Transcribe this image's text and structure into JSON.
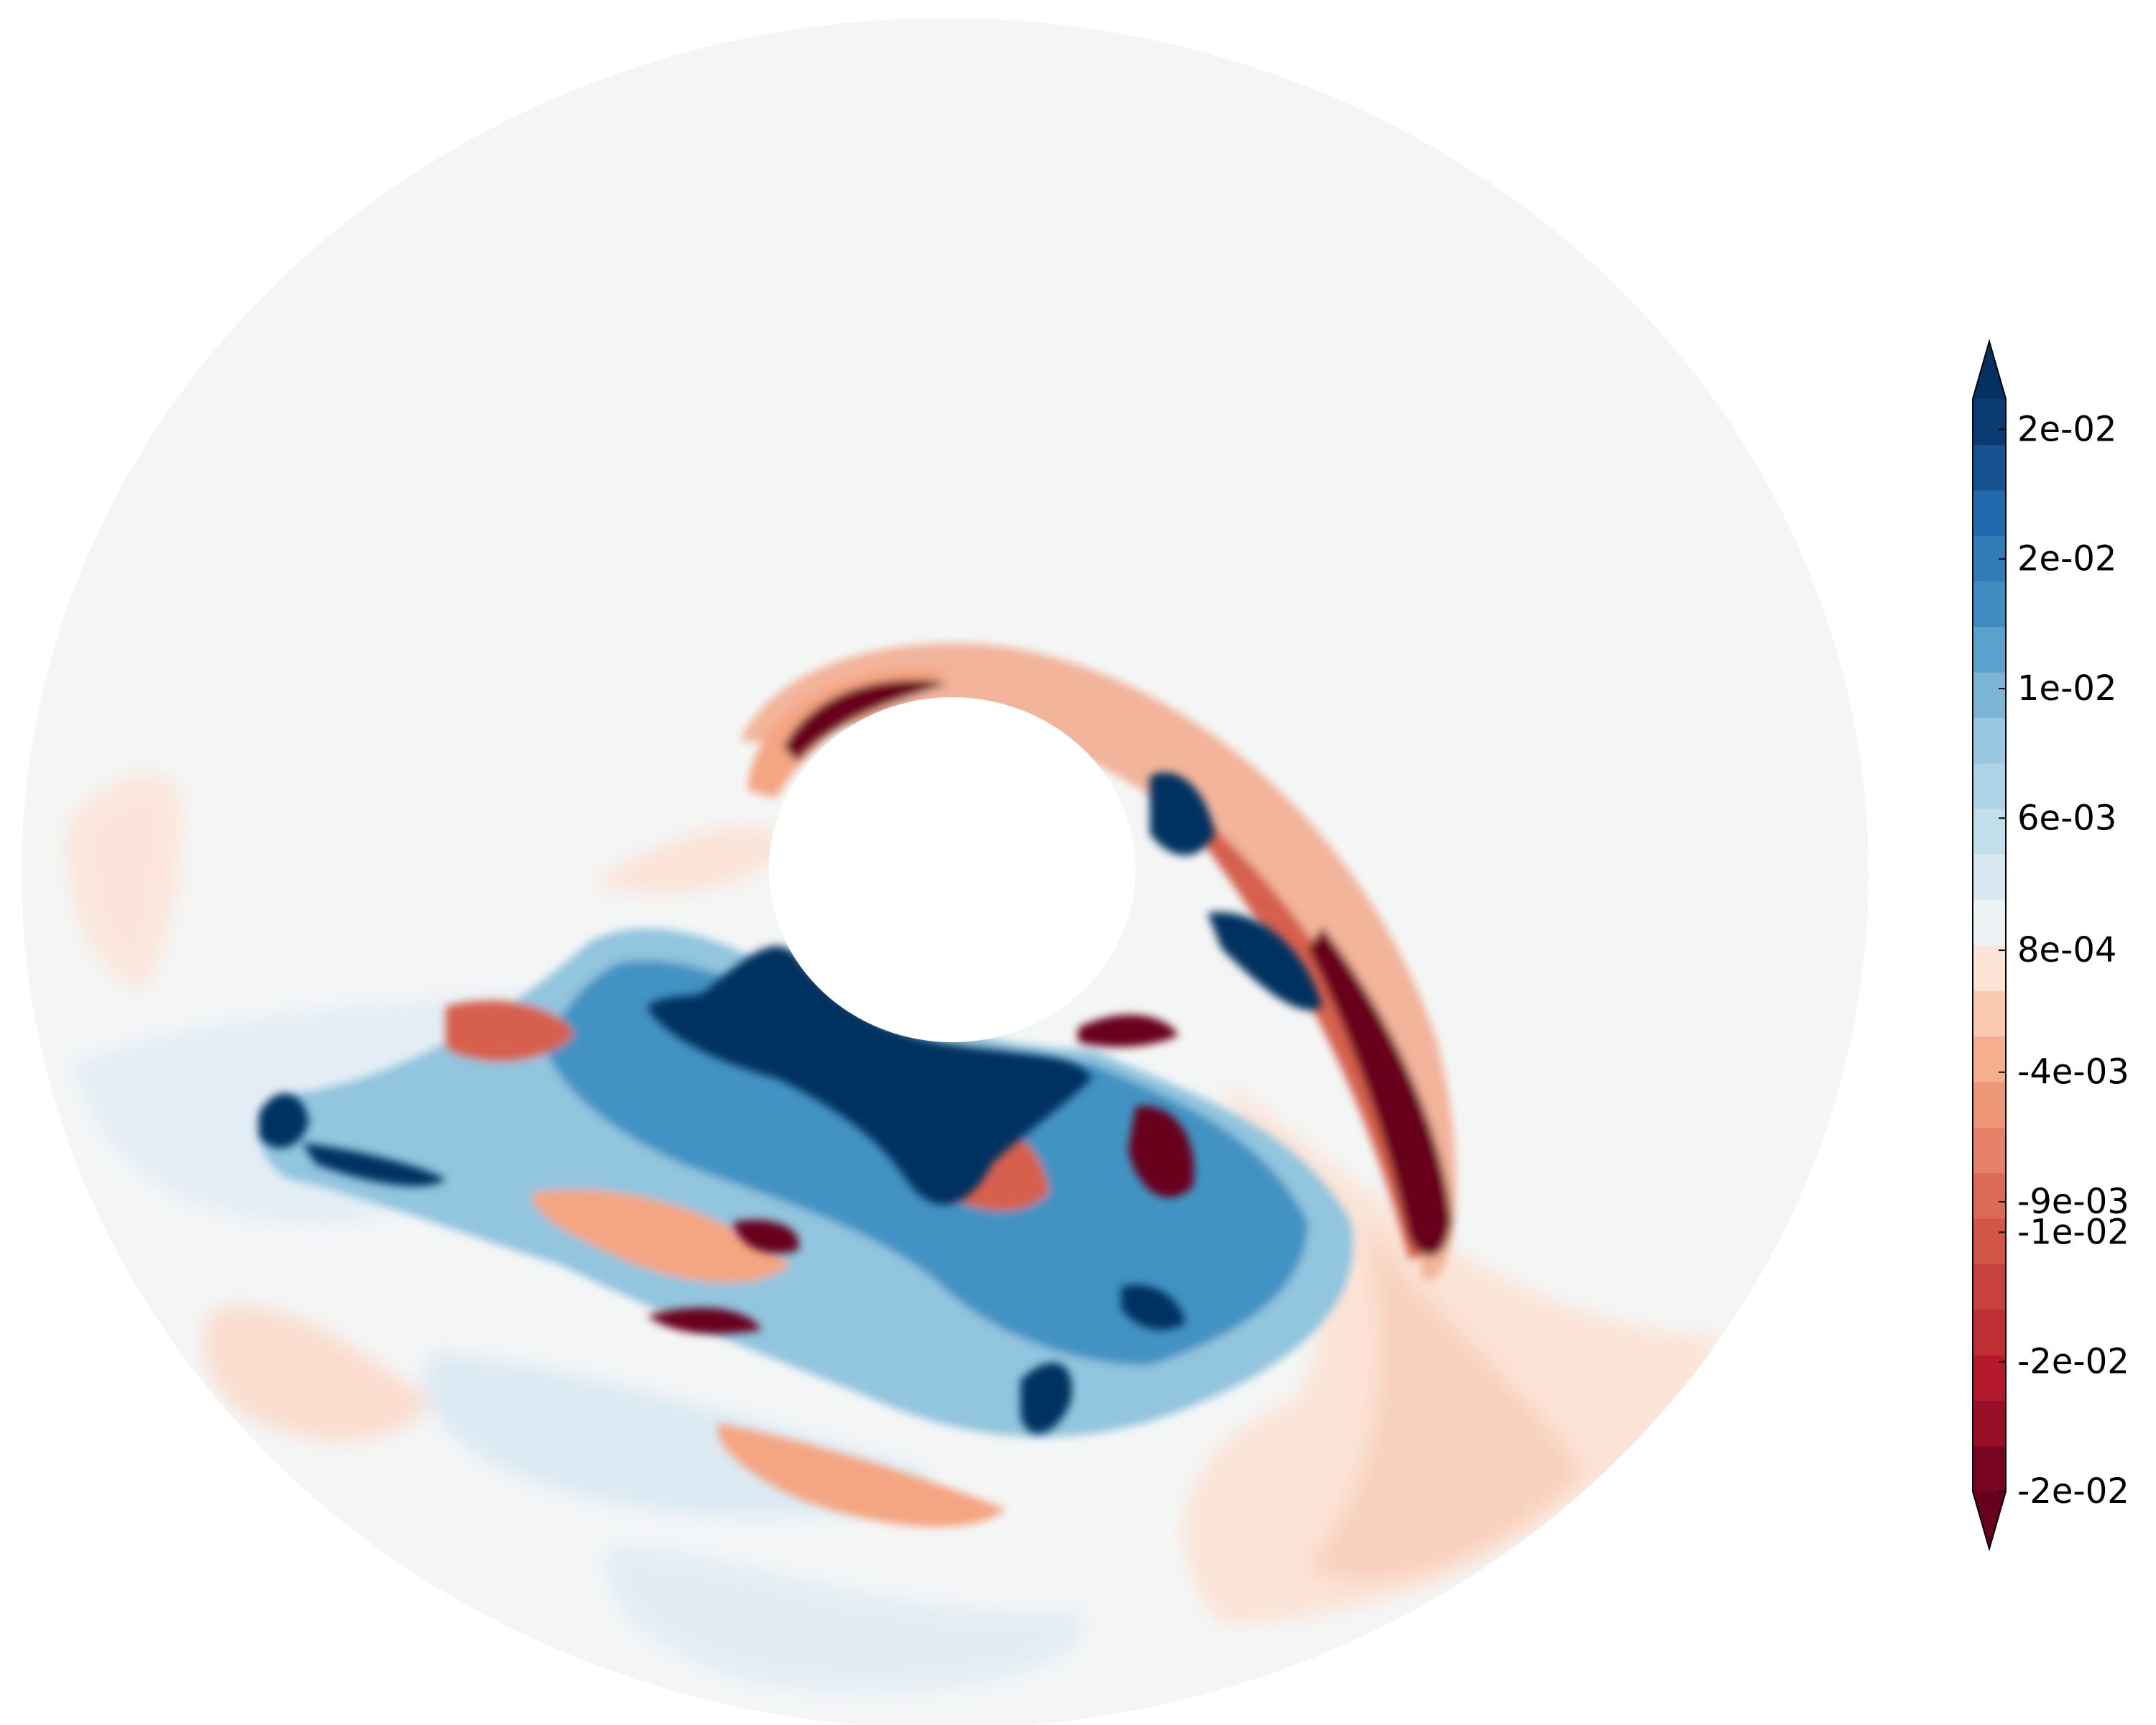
{
  "chart_data": {
    "type": "heatmap",
    "title": "",
    "colormap": "RdBu",
    "colorbar": {
      "orientation": "vertical",
      "position": "right",
      "extend": "both",
      "tick_labels": [
        "-2e-02",
        "-2e-02",
        "-1e-02",
        "-9e-03",
        "-4e-03",
        "8e-04",
        "6e-03",
        "1e-02",
        "2e-02",
        "2e-02"
      ],
      "tick_values": [
        -0.0205,
        -0.0154,
        -0.0103,
        -0.0091,
        -0.004,
        0.0008,
        0.006,
        0.0111,
        0.0162,
        0.0213
      ],
      "color_range": [
        -0.0205,
        0.0225
      ],
      "levels": 24,
      "colors": {
        "low_extend": "#67001f",
        "high_extend": "#053061",
        "neutral": "#f7f7f7"
      }
    },
    "domain": {
      "shape": "annulus",
      "outer_fill": "#f4f6f6",
      "inner_obstacle_fill": "#ffffff"
    }
  }
}
